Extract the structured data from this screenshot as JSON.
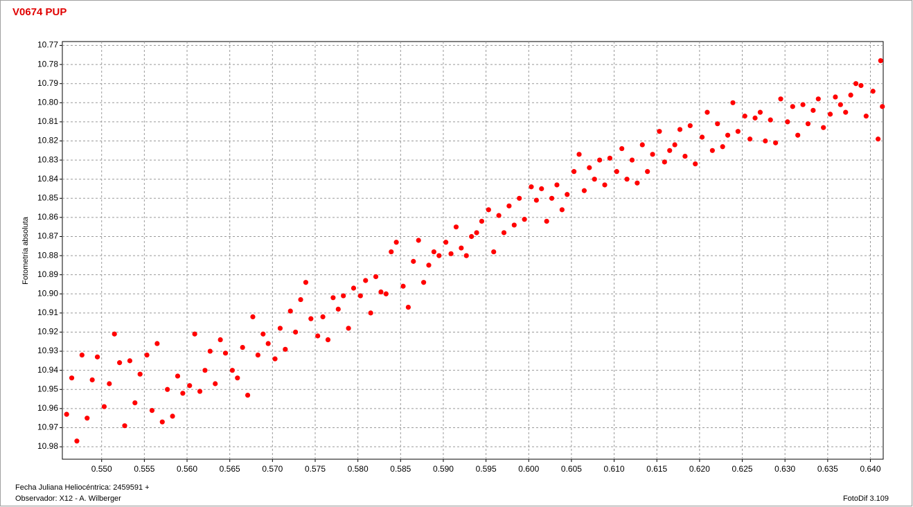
{
  "chart_data": {
    "type": "scatter",
    "title": "V0674 PUP",
    "y_label": "Fotometría absoluta",
    "x_label": "Fecha Juliana Heliocéntrica: 2459591 +",
    "annotations": [
      "Observador: X12 - A. Wilberger",
      "FotoDif 3.109"
    ],
    "color": "#ff0000",
    "grid": true,
    "y_inverted": true,
    "xlim": [
      0.5454,
      0.6415
    ],
    "ylim": [
      10.768,
      10.9865
    ],
    "xticks": [
      {
        "value": 0.55,
        "label": "0.550"
      },
      {
        "value": 0.555,
        "label": "0.555"
      },
      {
        "value": 0.56,
        "label": "0.560"
      },
      {
        "value": 0.565,
        "label": "0.565"
      },
      {
        "value": 0.57,
        "label": "0.570"
      },
      {
        "value": 0.575,
        "label": "0.575"
      },
      {
        "value": 0.58,
        "label": "0.580"
      },
      {
        "value": 0.585,
        "label": "0.585"
      },
      {
        "value": 0.59,
        "label": "0.590"
      },
      {
        "value": 0.595,
        "label": "0.595"
      },
      {
        "value": 0.6,
        "label": "0.600"
      },
      {
        "value": 0.605,
        "label": "0.605"
      },
      {
        "value": 0.61,
        "label": "0.610"
      },
      {
        "value": 0.615,
        "label": "0.615"
      },
      {
        "value": 0.62,
        "label": "0.620"
      },
      {
        "value": 0.625,
        "label": "0.625"
      },
      {
        "value": 0.63,
        "label": "0.630"
      },
      {
        "value": 0.635,
        "label": "0.635"
      },
      {
        "value": 0.64,
        "label": "0.640"
      }
    ],
    "yticks": [
      10.77,
      10.78,
      10.79,
      {
        "value": 10.8,
        "label": "10.80"
      },
      10.81,
      10.82,
      10.83,
      10.84,
      10.85,
      10.86,
      10.87,
      10.88,
      10.89,
      {
        "value": 10.9,
        "label": "10.90"
      },
      10.91,
      10.92,
      10.93,
      10.94,
      10.95,
      10.96,
      10.97,
      10.98
    ],
    "x": [
      0.5459,
      0.5465,
      0.5471,
      0.5477,
      0.5483,
      0.5489,
      0.5495,
      0.5503,
      0.5509,
      0.5515,
      0.5521,
      0.5527,
      0.5533,
      0.5539,
      0.5545,
      0.5553,
      0.5559,
      0.5565,
      0.5571,
      0.5577,
      0.5583,
      0.5589,
      0.5595,
      0.5603,
      0.5609,
      0.5615,
      0.5621,
      0.5627,
      0.5633,
      0.5639,
      0.5645,
      0.5653,
      0.5659,
      0.5665,
      0.5671,
      0.5677,
      0.5683,
      0.5689,
      0.5695,
      0.5703,
      0.5709,
      0.5715,
      0.5721,
      0.5727,
      0.5733,
      0.5739,
      0.5745,
      0.5753,
      0.5759,
      0.5765,
      0.5771,
      0.5777,
      0.5783,
      0.5789,
      0.5795,
      0.5803,
      0.5809,
      0.5815,
      0.5821,
      0.5827,
      0.5833,
      0.5839,
      0.5845,
      0.5853,
      0.5859,
      0.5865,
      0.5871,
      0.5877,
      0.5883,
      0.5889,
      0.5895,
      0.5903,
      0.5909,
      0.5915,
      0.5921,
      0.5927,
      0.5933,
      0.5939,
      0.5945,
      0.5953,
      0.5959,
      0.5965,
      0.5971,
      0.5977,
      0.5983,
      0.5989,
      0.5995,
      0.6003,
      0.6009,
      0.6015,
      0.6021,
      0.6027,
      0.6033,
      0.6039,
      0.6045,
      0.6053,
      0.6059,
      0.6065,
      0.6071,
      0.6077,
      0.6083,
      0.6089,
      0.6095,
      0.6103,
      0.6109,
      0.6115,
      0.6121,
      0.6127,
      0.6133,
      0.6139,
      0.6145,
      0.6153,
      0.6159,
      0.6165,
      0.6171,
      0.6177,
      0.6183,
      0.6189,
      0.6195,
      0.6203,
      0.6209,
      0.6215,
      0.6221,
      0.6227,
      0.6233,
      0.6239,
      0.6245,
      0.6253,
      0.6259,
      0.6265,
      0.6271,
      0.6277,
      0.6283,
      0.6289,
      0.6295,
      0.6303,
      0.6309,
      0.6315,
      0.6321,
      0.6327,
      0.6333,
      0.6339,
      0.6345,
      0.6353,
      0.6359,
      0.6365,
      0.6371,
      0.6377,
      0.6383,
      0.6389,
      0.6395,
      0.6403,
      0.6409,
      0.6412,
      0.6414
    ],
    "values": [
      10.963,
      10.944,
      10.977,
      10.932,
      10.965,
      10.945,
      10.933,
      10.959,
      10.947,
      10.921,
      10.936,
      10.969,
      10.935,
      10.957,
      10.942,
      10.932,
      10.961,
      10.926,
      10.967,
      10.95,
      10.964,
      10.943,
      10.952,
      10.948,
      10.921,
      10.951,
      10.94,
      10.93,
      10.947,
      10.924,
      10.931,
      10.94,
      10.944,
      10.928,
      10.953,
      10.912,
      10.932,
      10.921,
      10.926,
      10.934,
      10.918,
      10.929,
      10.909,
      10.92,
      10.903,
      10.894,
      10.913,
      10.922,
      10.912,
      10.924,
      10.902,
      10.908,
      10.901,
      10.918,
      10.897,
      10.901,
      10.893,
      10.91,
      10.891,
      10.899,
      10.9,
      10.878,
      10.873,
      10.896,
      10.907,
      10.883,
      10.872,
      10.894,
      10.885,
      10.878,
      10.88,
      10.873,
      10.879,
      10.865,
      10.876,
      10.88,
      10.87,
      10.868,
      10.862,
      10.856,
      10.878,
      10.859,
      10.868,
      10.854,
      10.864,
      10.85,
      10.861,
      10.844,
      10.851,
      10.845,
      10.862,
      10.85,
      10.843,
      10.856,
      10.848,
      10.836,
      10.827,
      10.846,
      10.834,
      10.84,
      10.83,
      10.843,
      10.829,
      10.836,
      10.824,
      10.84,
      10.83,
      10.842,
      10.822,
      10.836,
      10.827,
      10.815,
      10.831,
      10.825,
      10.822,
      10.814,
      10.828,
      10.812,
      10.832,
      10.818,
      10.805,
      10.825,
      10.811,
      10.823,
      10.817,
      10.8,
      10.815,
      10.807,
      10.819,
      10.808,
      10.805,
      10.82,
      10.809,
      10.821,
      10.798,
      10.81,
      10.802,
      10.817,
      10.801,
      10.811,
      10.804,
      10.798,
      10.813,
      10.806,
      10.797,
      10.801,
      10.805,
      10.796,
      10.79,
      10.791,
      10.807,
      10.794,
      10.819,
      10.778,
      10.802
    ]
  }
}
